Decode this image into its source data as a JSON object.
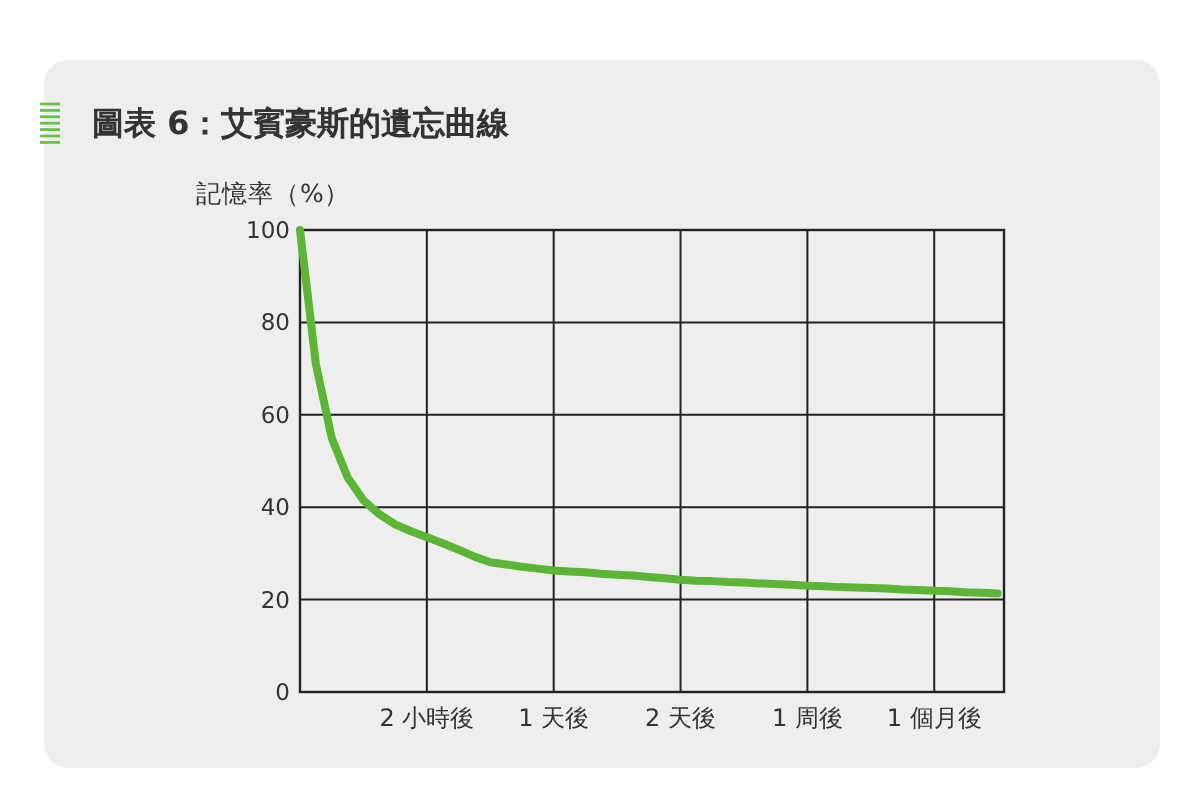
{
  "chart_data": {
    "type": "line",
    "title": "圖表 6：艾賓豪斯的遺忘曲線",
    "ylabel": "記憶率（%）",
    "categories": [
      null,
      null,
      null,
      null,
      null,
      null,
      null,
      null,
      "2 小時後",
      null,
      null,
      null,
      null,
      null,
      null,
      null,
      "1 天後",
      null,
      null,
      null,
      null,
      null,
      null,
      null,
      "2 天後",
      null,
      null,
      null,
      null,
      null,
      null,
      null,
      "1 周後",
      null,
      null,
      null,
      null,
      null,
      null,
      null,
      "1 個月後",
      null,
      null,
      null,
      null
    ],
    "series": [
      {
        "color": "#5cb536",
        "values": [
          100,
          71,
          55,
          46.5,
          41.5,
          38.5,
          36.3,
          34.8,
          33.5,
          32.2,
          30.8,
          29.3,
          28.1,
          27.6,
          27.1,
          26.7,
          26.3,
          26.1,
          25.9,
          25.6,
          25.4,
          25.2,
          24.9,
          24.6,
          24.3,
          24.1,
          24,
          23.8,
          23.7,
          23.5,
          23.4,
          23.2,
          23,
          22.9,
          22.7,
          22.6,
          22.5,
          22.4,
          22.2,
          22.1,
          21.9,
          21.8,
          21.6,
          21.5,
          21.3
        ]
      }
    ],
    "ylim": [
      0,
      100
    ],
    "yticks": [
      0,
      20,
      40,
      60,
      80,
      100
    ],
    "grid": true
  }
}
